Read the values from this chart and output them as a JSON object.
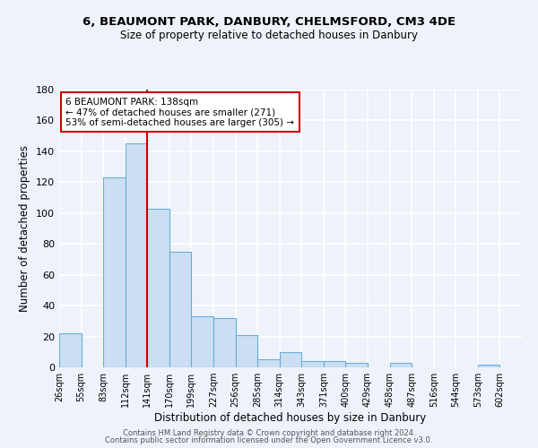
{
  "title": "6, BEAUMONT PARK, DANBURY, CHELMSFORD, CM3 4DE",
  "subtitle": "Size of property relative to detached houses in Danbury",
  "xlabel": "Distribution of detached houses by size in Danbury",
  "ylabel": "Number of detached properties",
  "bar_color": "#ccdff2",
  "bar_edge_color": "#6aaed6",
  "background_color": "#eef2fa",
  "categories": [
    "26sqm",
    "55sqm",
    "83sqm",
    "112sqm",
    "141sqm",
    "170sqm",
    "199sqm",
    "227sqm",
    "256sqm",
    "285sqm",
    "314sqm",
    "343sqm",
    "371sqm",
    "400sqm",
    "429sqm",
    "458sqm",
    "487sqm",
    "516sqm",
    "544sqm",
    "573sqm",
    "602sqm"
  ],
  "values": [
    22,
    0,
    123,
    145,
    103,
    75,
    33,
    32,
    21,
    5,
    10,
    4,
    4,
    3,
    0,
    3,
    0,
    0,
    0,
    2,
    0
  ],
  "ylim": [
    0,
    180
  ],
  "yticks": [
    0,
    20,
    40,
    60,
    80,
    100,
    120,
    140,
    160,
    180
  ],
  "vline_x": 4,
  "vline_color": "#cc0000",
  "annotation_title": "6 BEAUMONT PARK: 138sqm",
  "annotation_line1": "← 47% of detached houses are smaller (271)",
  "annotation_line2": "53% of semi-detached houses are larger (305) →",
  "annotation_box_color": "#ffffff",
  "annotation_box_edge": "#cc0000",
  "footer1": "Contains HM Land Registry data © Crown copyright and database right 2024.",
  "footer2": "Contains public sector information licensed under the Open Government Licence v3.0."
}
